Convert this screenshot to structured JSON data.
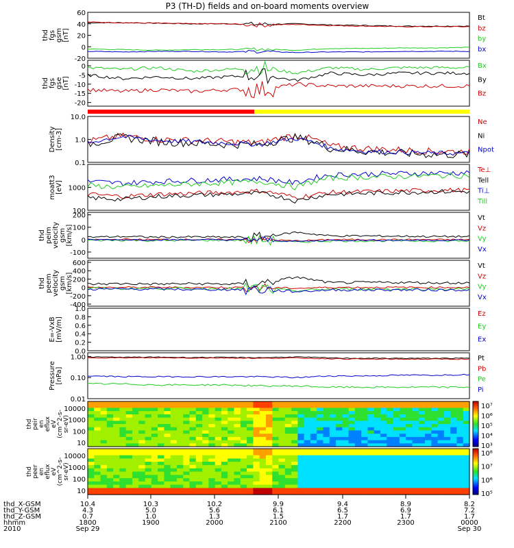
{
  "title": "P3 (TH-D) fields and on-board moments overview",
  "colors": {
    "black": "#000000",
    "red": "#cc0000",
    "green": "#22cc22",
    "blue": "#0000cc",
    "yellow": "#ffff00",
    "brightred": "#ff0000"
  },
  "chart_data": {
    "type": "line",
    "x_range": [
      "2010-09-29T18:00",
      "2010-09-30T00:00"
    ],
    "panels": [
      {
        "ylabel": [
          "thd",
          "fgs",
          "gsm",
          "[nT]"
        ],
        "ticks": [
          "60",
          "40",
          "20",
          "0",
          "-20"
        ],
        "ylim": [
          -20,
          60
        ],
        "series": [
          {
            "name": "Bt",
            "color": "#000000",
            "values": [
              42,
              42,
              41,
              40,
              40,
              39,
              40,
              38,
              37,
              36,
              36,
              36
            ],
            "noise": 0.8
          },
          {
            "name": "bz",
            "color": "#cc0000",
            "values": [
              43,
              42,
              41,
              40,
              40,
              38,
              39,
              37,
              36,
              35,
              35,
              35
            ],
            "noise": 0.8
          },
          {
            "name": "by",
            "color": "#22cc22",
            "values": [
              -4,
              -5,
              -6,
              -5,
              -5,
              -4,
              -6,
              -3,
              -3,
              -2,
              -2,
              -1
            ],
            "noise": 0.6
          },
          {
            "name": "bx",
            "color": "#0000cc",
            "values": [
              -8,
              -9,
              -8,
              -8,
              -9,
              -8,
              -10,
              -9,
              -9,
              -8,
              -8,
              -8
            ],
            "noise": 0.6
          }
        ]
      },
      {
        "ylabel": [
          "thd",
          "fgs",
          "gse",
          "[nT]"
        ],
        "ticks": [
          "0",
          "-5",
          "-10",
          "-15",
          "-20"
        ],
        "ylim": [
          -22,
          3
        ],
        "series": [
          {
            "name": "Bx",
            "color": "#22cc22",
            "values": [
              -1,
              -2,
              -1,
              -3,
              -2,
              -1,
              -4,
              -1,
              -2,
              -1,
              -1,
              -1
            ],
            "noise": 0.8
          },
          {
            "name": "By",
            "color": "#000000",
            "values": [
              -5,
              -7,
              -6,
              -7,
              -6,
              -5,
              -8,
              -4,
              -5,
              -4,
              -4,
              -4
            ],
            "noise": 0.8
          },
          {
            "name": "Bz",
            "color": "#cc0000",
            "values": [
              -13,
              -14,
              -13,
              -14,
              -13,
              -13,
              -10,
              -11,
              -11,
              -11,
              -11,
              -11
            ],
            "noise": 1.0
          }
        ]
      },
      {
        "ylabel": [
          "Density",
          "[cm-3]"
        ],
        "ticks": [
          "10.0",
          "1.0",
          "0.1"
        ],
        "ylim": [
          0.1,
          10
        ],
        "log": true,
        "series": [
          {
            "name": "Ne",
            "color": "#cc0000",
            "values": [
              0.8,
              1.4,
              1.0,
              0.9,
              0.8,
              0.7,
              1.5,
              0.5,
              0.4,
              0.35,
              0.3,
              0.3
            ],
            "noise": 0.15
          },
          {
            "name": "Ni",
            "color": "#000000",
            "values": [
              0.6,
              1.2,
              0.8,
              0.7,
              0.6,
              0.6,
              1.2,
              0.4,
              0.3,
              0.25,
              0.22,
              0.22
            ],
            "noise": 0.18
          },
          {
            "name": "Npot",
            "color": "#0000cc",
            "values": [
              0.7,
              1.3,
              0.9,
              0.8,
              0.7,
              0.6,
              1.1,
              0.4,
              0.3,
              0.28,
              0.25,
              0.25
            ],
            "noise": 0.1
          }
        ]
      },
      {
        "ylabel": [
          "moatt3",
          "[eV]"
        ],
        "ticks": [
          "1000",
          "100"
        ],
        "ylim": [
          100,
          10000
        ],
        "log": true,
        "series": [
          {
            "name": "Te⊥",
            "color": "#cc0000",
            "values": [
              500,
              400,
              500,
              550,
              600,
              700,
              350,
              600,
              650,
              700,
              750,
              750
            ],
            "noise": 0.1
          },
          {
            "name": "Tell",
            "color": "#000000",
            "values": [
              350,
              300,
              400,
              450,
              500,
              550,
              250,
              500,
              550,
              600,
              650,
              650
            ],
            "noise": 0.1
          },
          {
            "name": "Ti⊥",
            "color": "#0000cc",
            "values": [
              1800,
              1500,
              1800,
              2000,
              2200,
              2400,
              1500,
              3500,
              3800,
              4000,
              4200,
              4300
            ],
            "noise": 0.12
          },
          {
            "name": "Till",
            "color": "#22cc22",
            "values": [
              1200,
              1000,
              1200,
              1400,
              1600,
              1800,
              1000,
              2500,
              2800,
              3000,
              3200,
              3300
            ],
            "noise": 0.12
          }
        ]
      },
      {
        "ylabel": [
          "thd",
          "peim",
          "velocity",
          "gsm",
          "[km/s]"
        ],
        "ticks": [
          "200",
          "100",
          "0",
          "-100"
        ],
        "ylim": [
          -150,
          220
        ],
        "series": [
          {
            "name": "Vt",
            "color": "#000000",
            "values": [
              20,
              25,
              20,
              22,
              20,
              20,
              60,
              30,
              30,
              28,
              25,
              25
            ],
            "noise": 8
          },
          {
            "name": "Vz",
            "color": "#cc0000",
            "values": [
              0,
              2,
              0,
              1,
              0,
              0,
              -10,
              0,
              0,
              0,
              0,
              0
            ],
            "noise": 6
          },
          {
            "name": "Vy",
            "color": "#22cc22",
            "values": [
              -5,
              -5,
              -8,
              -6,
              -5,
              -5,
              -20,
              -10,
              -10,
              -10,
              -10,
              -10
            ],
            "noise": 8
          },
          {
            "name": "Vx",
            "color": "#0000cc",
            "values": [
              -2,
              0,
              -2,
              0,
              -2,
              0,
              -15,
              -5,
              -5,
              -5,
              -5,
              -5
            ],
            "noise": 6
          }
        ]
      },
      {
        "ylabel": [
          "thd",
          "peem",
          "velocity",
          "gsm",
          "[km/s]"
        ],
        "ticks": [
          "600",
          "400",
          "200",
          "0",
          "-200",
          "-400"
        ],
        "ylim": [
          -450,
          650
        ],
        "series": [
          {
            "name": "Vt",
            "color": "#000000",
            "values": [
              80,
              90,
              80,
              90,
              80,
              90,
              250,
              110,
              120,
              120,
              110,
              110
            ],
            "noise": 30
          },
          {
            "name": "Vz",
            "color": "#cc0000",
            "values": [
              0,
              0,
              0,
              0,
              0,
              0,
              -20,
              0,
              0,
              0,
              0,
              0
            ],
            "noise": 20
          },
          {
            "name": "Vy",
            "color": "#22cc22",
            "values": [
              -20,
              -30,
              -20,
              -30,
              -30,
              -30,
              -80,
              -40,
              -40,
              -40,
              -40,
              -40
            ],
            "noise": 30
          },
          {
            "name": "Vx",
            "color": "#0000cc",
            "values": [
              -40,
              -40,
              -40,
              -50,
              -50,
              -50,
              -100,
              -60,
              -60,
              -60,
              -60,
              -60
            ],
            "noise": 30
          }
        ]
      },
      {
        "ylabel": [
          "E=-VxB",
          "[mV/m]"
        ],
        "ticks": [
          "1.0",
          "0.8",
          "0.6",
          "0.4",
          "0.2",
          "0.0"
        ],
        "ylim": [
          0,
          1
        ],
        "series": [
          {
            "name": "Ez",
            "color": "#cc0000",
            "values": []
          },
          {
            "name": "Ey",
            "color": "#22cc22",
            "values": []
          },
          {
            "name": "Ex",
            "color": "#0000cc",
            "values": []
          }
        ]
      },
      {
        "ylabel": [
          "Pressure",
          "[nPa]"
        ],
        "ticks": [
          "1.00",
          "0.10",
          "0.01"
        ],
        "ylim": [
          0.01,
          1.5
        ],
        "log": true,
        "series": [
          {
            "name": "Pt",
            "color": "#000000",
            "values": [
              0.95,
              0.92,
              0.93,
              0.9,
              0.9,
              0.88,
              0.95,
              0.85,
              0.82,
              0.82,
              0.82,
              0.82
            ],
            "noise": 0.02
          },
          {
            "name": "Pb",
            "color": "#cc0000",
            "values": [
              0.88,
              0.86,
              0.87,
              0.85,
              0.85,
              0.82,
              0.85,
              0.78,
              0.75,
              0.75,
              0.75,
              0.75
            ],
            "noise": 0.02
          },
          {
            "name": "Pe",
            "color": "#22cc22",
            "values": [
              0.05,
              0.05,
              0.045,
              0.045,
              0.045,
              0.04,
              0.04,
              0.035,
              0.035,
              0.035,
              0.035,
              0.035
            ],
            "noise": 0.04
          },
          {
            "name": "Pi",
            "color": "#0000cc",
            "values": [
              0.12,
              0.11,
              0.11,
              0.11,
              0.11,
              0.11,
              0.1,
              0.12,
              0.12,
              0.13,
              0.13,
              0.14
            ],
            "noise": 0.03
          }
        ]
      }
    ],
    "spectrograms": [
      {
        "ylabel": [
          "thd",
          "peir",
          "en",
          "eflux",
          "eV",
          "(cm^2-s-",
          "sr-eV)"
        ],
        "ticks": [
          "10000",
          "1000",
          "100",
          "10"
        ],
        "colorbar_ticks": [
          "10⁷",
          "10⁶",
          "10⁵",
          "10⁴",
          "10³"
        ]
      },
      {
        "ylabel": [
          "thd",
          "peer",
          "en",
          "eflux",
          "eV",
          "(cm^2-s-",
          "sr-eV)"
        ],
        "ticks": [
          "10000",
          "1000",
          "100",
          "10"
        ],
        "colorbar_ticks": [
          "10⁸",
          "10⁷",
          "10⁶",
          "10⁵"
        ]
      }
    ],
    "xaxis": {
      "labels": [
        "thd_X-GSM",
        "thd_Y-GSM",
        "thd_Z-GSM",
        "hhmm",
        "2010"
      ],
      "rows": [
        [
          "10.4",
          "10.3",
          "10.2",
          "9.9",
          "9.4",
          "8.9",
          "8.2"
        ],
        [
          "4.3",
          "5.0",
          "5.6",
          "6.1",
          "6.5",
          "6.9",
          "7.2"
        ],
        [
          "0.7",
          "1.0",
          "1.3",
          "1.5",
          "1.7",
          "1.7",
          "1.7"
        ],
        [
          "1800",
          "1900",
          "2000",
          "2100",
          "2200",
          "2300",
          "0000"
        ]
      ],
      "dates": [
        "Sep 29",
        "Sep 30"
      ]
    }
  }
}
